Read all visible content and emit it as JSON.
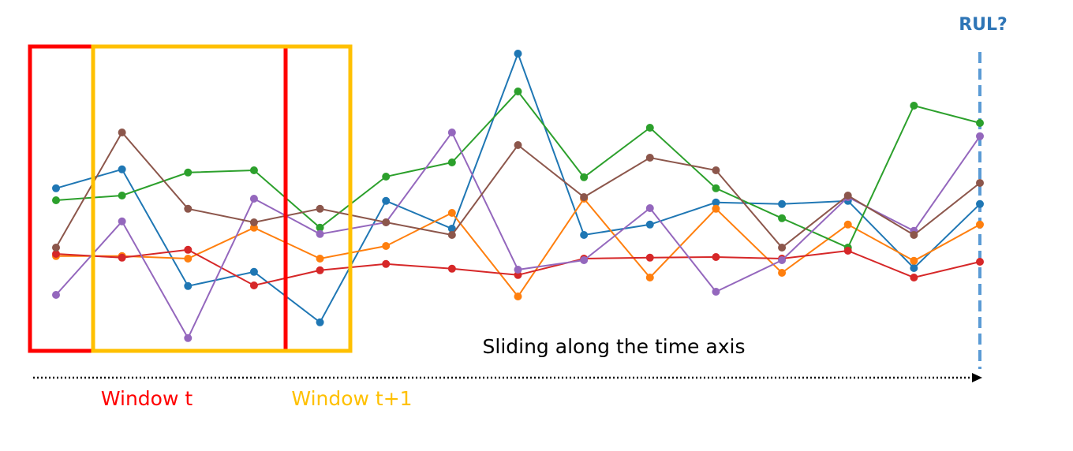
{
  "chart_data": {
    "type": "line",
    "ylim": [
      0,
      100
    ],
    "series": [
      {
        "color": "#1f77b4",
        "values": [
          55.3,
          61.3,
          24.3,
          28.8,
          12.8,
          51.3,
          42.5,
          98,
          40.5,
          43.8,
          50.8,
          50.3,
          51.3,
          30,
          50.3
        ]
      },
      {
        "color": "#ff7f0e",
        "values": [
          33.8,
          33.8,
          33,
          42.8,
          33,
          37,
          47.5,
          21,
          52,
          27,
          48.8,
          28.5,
          43.8,
          32.3,
          43.8
        ]
      },
      {
        "color": "#2ca02c",
        "values": [
          51.5,
          53,
          60.3,
          61,
          42.8,
          59,
          63.5,
          86,
          58.8,
          74.5,
          55.3,
          45.8,
          36.5,
          81.5,
          76
        ]
      },
      {
        "color": "#d62728",
        "values": [
          34.5,
          33.3,
          35.8,
          24.5,
          29.3,
          31.3,
          29.8,
          27.8,
          33,
          33.3,
          33.5,
          33,
          35.5,
          27,
          32
        ]
      },
      {
        "color": "#9467bd",
        "values": [
          21.5,
          44.8,
          7.8,
          52,
          40.8,
          44.5,
          73,
          29.5,
          32.5,
          49,
          22.5,
          32.5,
          52.5,
          41.8,
          71.8
        ]
      },
      {
        "color": "#8c564b",
        "values": [
          36.5,
          73,
          48.8,
          44.5,
          48.8,
          44.5,
          40.5,
          69,
          52.5,
          65,
          61,
          36.5,
          53,
          40.5,
          57
        ]
      }
    ],
    "annotations": [
      "RUL?",
      "Sliding along the time axis",
      "Window t",
      "Window t+1"
    ]
  }
}
